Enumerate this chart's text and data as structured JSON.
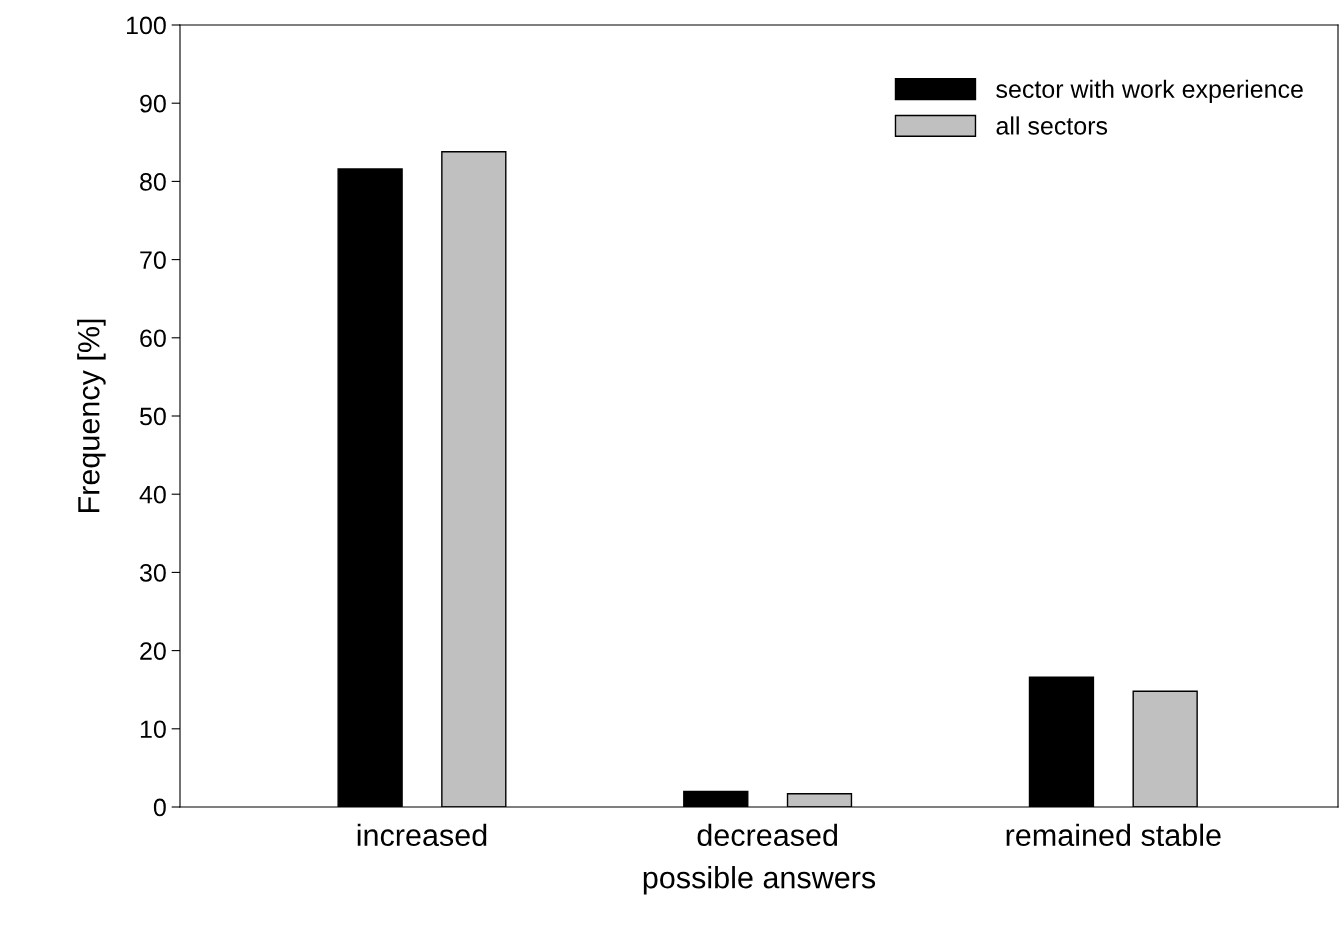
{
  "chart_data": {
    "type": "bar",
    "xlabel": "possible answers",
    "ylabel": "Frequency [%]",
    "categories": [
      "increased",
      "decreased",
      "remained stable"
    ],
    "series": [
      {
        "name": "sector with work experience",
        "color": "#000000",
        "values": [
          81.6,
          2.0,
          16.6
        ]
      },
      {
        "name": "all sectors",
        "color": "#c0c0c0",
        "values": [
          83.8,
          1.7,
          14.8
        ]
      }
    ],
    "ylim": [
      0,
      100
    ],
    "yticks": [
      0,
      10,
      20,
      30,
      40,
      50,
      60,
      70,
      80,
      90,
      100
    ],
    "grid": false,
    "legend": "top right"
  }
}
